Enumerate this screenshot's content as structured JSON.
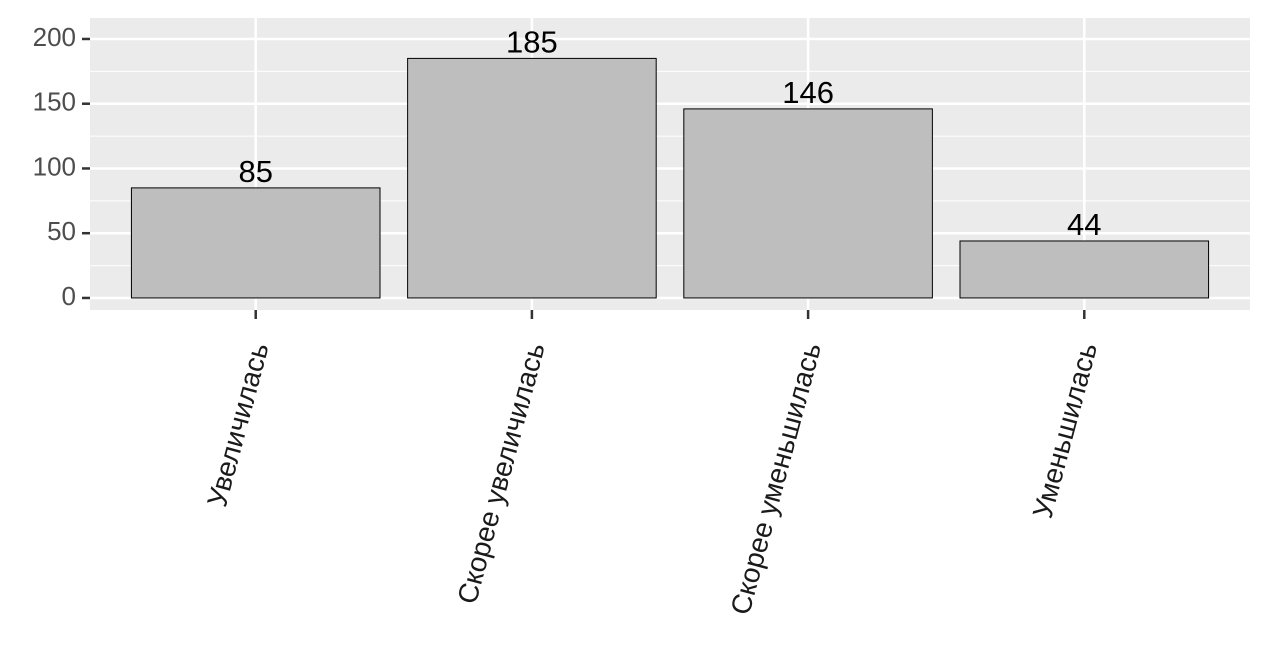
{
  "chart_data": {
    "type": "bar",
    "categories": [
      "Увеличилась",
      "Скорее увеличилась",
      "Скорее уменьшилась",
      "Уменьшилась"
    ],
    "values": [
      85,
      185,
      146,
      44
    ],
    "color": "#bebebe",
    "ylim": [
      -9.3,
      216.2
    ],
    "yticks": [
      0,
      50,
      100,
      150,
      200
    ],
    "grid": true
  }
}
